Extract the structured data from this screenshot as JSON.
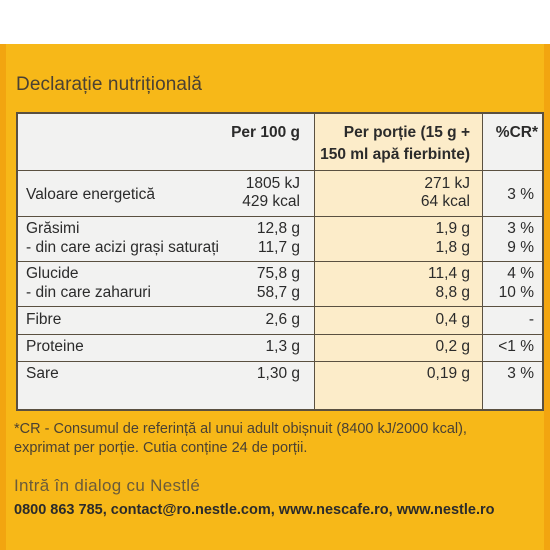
{
  "title": "Declarație nutrițională",
  "headers": {
    "per100": "Per 100 g",
    "portion_line1": "Per porție (15 g +",
    "portion_line2": "150 ml apă fierbinte)",
    "cr": "%CR*"
  },
  "rows": [
    {
      "label": "Valoare energetică",
      "per100": "1805 kJ",
      "per100_b": "429 kcal",
      "portion": "271 kJ",
      "portion_b": "64 kcal",
      "cr": "3 %"
    },
    {
      "label": "Grăsimi",
      "per100": "12,8 g",
      "portion": "1,9 g",
      "cr": "3 %"
    },
    {
      "label": "- din care acizi grași saturați",
      "per100": "11,7 g",
      "portion": "1,8 g",
      "cr": "9 %"
    },
    {
      "label": "Glucide",
      "per100": "75,8 g",
      "portion": "11,4 g",
      "cr": "4 %"
    },
    {
      "label": "- din care zaharuri",
      "per100": "58,7 g",
      "portion": "8,8 g",
      "cr": "10 %"
    },
    {
      "label": "Fibre",
      "per100": "2,6 g",
      "portion": "0,4 g",
      "cr": "-"
    },
    {
      "label": "Proteine",
      "per100": "1,3 g",
      "portion": "0,2 g",
      "cr": "<1 %"
    },
    {
      "label": "Sare",
      "per100": "1,30 g",
      "portion": "0,19 g",
      "cr": "3 %"
    }
  ],
  "footnote": {
    "line1": "*CR - Consumul de referință al unui adult obișnuit (8400 kJ/2000 kcal),",
    "line2": "exprimat per porție.  Cutia conține 24 de porții."
  },
  "dialog": "Intră în dialog cu Nestlé",
  "contact": "0800 863 785, contact@ro.nestle.com, www.nescafe.ro,  www.nestle.ro",
  "colors": {
    "package": "#f7b818",
    "table_bg": "#f2f2f1",
    "portion_col": "#fcecc9",
    "border": "#5a5040"
  }
}
